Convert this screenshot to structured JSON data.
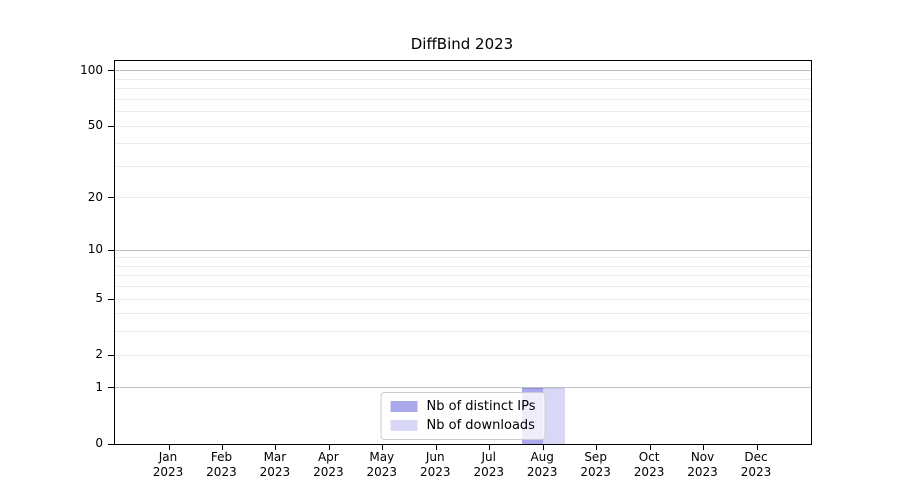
{
  "chart_data": {
    "type": "bar",
    "title": "DiffBind 2023",
    "categories": [
      "Jan 2023",
      "Feb 2023",
      "Mar 2023",
      "Apr 2023",
      "May 2023",
      "Jun 2023",
      "Jul 2023",
      "Aug 2023",
      "Sep 2023",
      "Oct 2023",
      "Nov 2023",
      "Dec 2023"
    ],
    "x_tick_months": [
      "Jan",
      "Feb",
      "Mar",
      "Apr",
      "May",
      "Jun",
      "Jul",
      "Aug",
      "Sep",
      "Oct",
      "Nov",
      "Dec"
    ],
    "x_tick_year": "2023",
    "series": [
      {
        "name": "Nb of distinct IPs",
        "color": "#a9a9ec",
        "edge_color": "#8f8fdf",
        "values": [
          0,
          0,
          0,
          0,
          0,
          0,
          0,
          1,
          0,
          0,
          0,
          0
        ]
      },
      {
        "name": "Nb of downloads",
        "color": "#d8d8f6",
        "edge_color": "#c9c9f0",
        "values": [
          0,
          0,
          0,
          0,
          0,
          0,
          0,
          1,
          0,
          0,
          0,
          0
        ]
      }
    ],
    "ylabel": "",
    "xlabel": "",
    "yscale": "log10(1+x)",
    "yticks": [
      0,
      1,
      2,
      5,
      10,
      20,
      50,
      100
    ],
    "decade_gridlines": [
      1,
      10,
      100
    ],
    "minor_gridlines": [
      3,
      4,
      6,
      7,
      8,
      9,
      30,
      40,
      60,
      70,
      80,
      90
    ],
    "ylim": [
      0,
      113
    ],
    "grid": "horizontal-only",
    "legend_position": "lower center"
  },
  "colors": {
    "background": "#ffffff",
    "axis": "#000000",
    "text": "#000000",
    "decade_gridline": "#bfbfbf",
    "minor_gridline": "#ececec",
    "legend_border": "#cccccc"
  }
}
